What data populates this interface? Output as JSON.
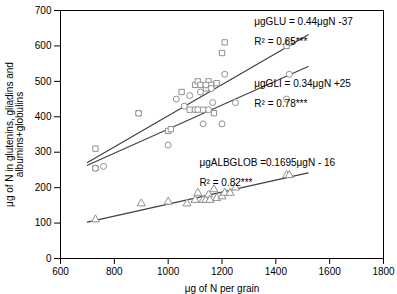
{
  "chart_data": {
    "type": "scatter",
    "xlabel": "μg of N per grain",
    "ylabel": "μg of N in glutenins, gliadins and\nalbumins+globulins",
    "xlim": [
      600,
      1800
    ],
    "ylim": [
      0,
      700
    ],
    "xticks": [
      600,
      800,
      1000,
      1200,
      1400,
      1600,
      1800
    ],
    "yticks": [
      0,
      100,
      200,
      300,
      400,
      500,
      600,
      700
    ],
    "series": [
      {
        "type": "scatter",
        "marker": "square",
        "color": "#909090",
        "x": [
          730,
          730,
          890,
          1000,
          1010,
          1050,
          1080,
          1100,
          1110,
          1120,
          1130,
          1140,
          1150,
          1160,
          1170,
          1180,
          1200,
          1210,
          1440,
          1450
        ],
        "values": [
          255,
          310,
          410,
          360,
          365,
          470,
          420,
          490,
          500,
          490,
          420,
          480,
          500,
          490,
          410,
          495,
          580,
          610,
          600,
          610
        ]
      },
      {
        "type": "scatter",
        "marker": "circle",
        "color": "#909090",
        "x": [
          730,
          760,
          890,
          1000,
          1030,
          1060,
          1080,
          1100,
          1110,
          1120,
          1130,
          1140,
          1150,
          1160,
          1165,
          1200,
          1210,
          1250,
          1440,
          1450
        ],
        "values": [
          255,
          260,
          410,
          320,
          450,
          430,
          460,
          420,
          420,
          470,
          380,
          490,
          420,
          480,
          440,
          380,
          520,
          440,
          450,
          520
        ]
      },
      {
        "type": "scatter",
        "marker": "triangle",
        "color": "#909090",
        "x": [
          730,
          900,
          1000,
          1070,
          1100,
          1110,
          1130,
          1140,
          1150,
          1155,
          1170,
          1180,
          1200,
          1210,
          1230,
          1250,
          1440,
          1450
        ],
        "values": [
          110,
          155,
          160,
          155,
          165,
          185,
          165,
          165,
          180,
          165,
          195,
          170,
          175,
          185,
          185,
          200,
          235,
          235
        ]
      },
      {
        "type": "line",
        "color": "#404040",
        "x": [
          700,
          1520
        ],
        "values": [
          271,
          631.8
        ]
      },
      {
        "type": "line",
        "color": "#404040",
        "x": [
          700,
          1520
        ],
        "values": [
          263,
          541.8
        ]
      },
      {
        "type": "line",
        "color": "#404040",
        "x": [
          700,
          1520
        ],
        "values": [
          102.65,
          241.64
        ]
      }
    ],
    "annotations": [
      "μgGLU = 0.44μgN -37",
      "R² = 0.65***",
      "μgGLI = 0.34μgN +25",
      "R² = 0.78***",
      "μgALBGLOB =0.1695μgN - 16",
      "R² = 0.82***"
    ]
  }
}
